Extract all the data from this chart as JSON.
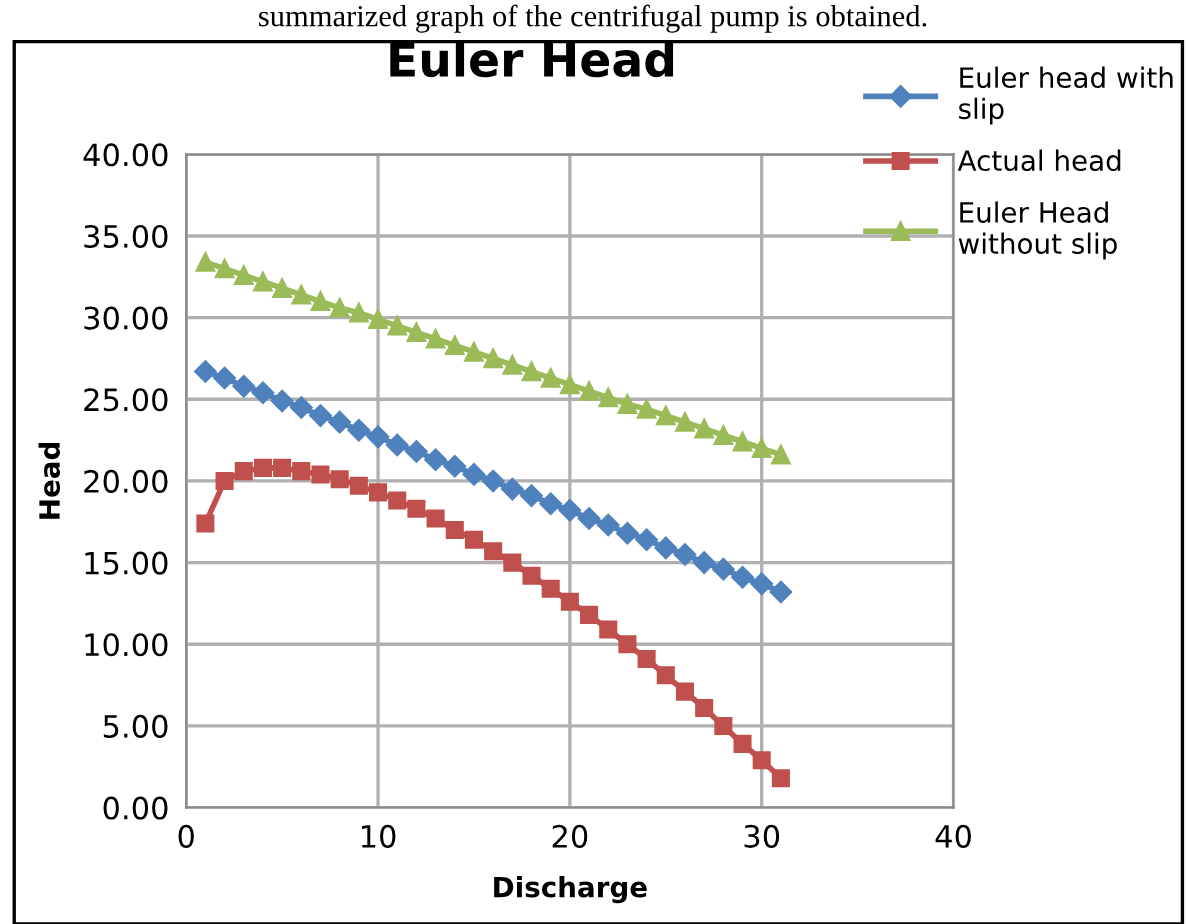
{
  "chart_data": {
    "type": "line",
    "title": "Euler Head",
    "xlabel": "Discharge",
    "ylabel": "Head",
    "annotations": [
      "summarized graph of the centrifugal pump is obtained."
    ],
    "x": [
      1,
      2,
      3,
      4,
      5,
      6,
      7,
      8,
      9,
      10,
      11,
      12,
      13,
      14,
      15,
      16,
      17,
      18,
      19,
      20,
      21,
      22,
      23,
      24,
      25,
      26,
      27,
      28,
      29,
      30,
      31
    ],
    "series": [
      {
        "name": "Euler head with\nslip",
        "color": "#4f81bd",
        "marker": "diamond",
        "values": [
          26.7,
          26.3,
          25.8,
          25.4,
          24.9,
          24.5,
          24.0,
          23.6,
          23.1,
          22.7,
          22.2,
          21.8,
          21.3,
          20.9,
          20.4,
          20.0,
          19.5,
          19.1,
          18.6,
          18.2,
          17.7,
          17.3,
          16.8,
          16.4,
          15.9,
          15.5,
          15.0,
          14.6,
          14.1,
          13.7,
          13.2
        ]
      },
      {
        "name": "Actual head",
        "color": "#c0504d",
        "marker": "square",
        "values": [
          17.4,
          20.0,
          20.6,
          20.8,
          20.8,
          20.6,
          20.4,
          20.1,
          19.7,
          19.3,
          18.8,
          18.3,
          17.7,
          17.0,
          16.4,
          15.7,
          15.0,
          14.2,
          13.4,
          12.6,
          11.8,
          10.9,
          10.0,
          9.1,
          8.1,
          7.1,
          6.1,
          5.0,
          3.9,
          2.9,
          1.8
        ]
      },
      {
        "name": "Euler Head\nwithout slip",
        "color": "#9bbb59",
        "marker": "triangle",
        "values": [
          33.4,
          33.0,
          32.6,
          32.2,
          31.8,
          31.4,
          31.0,
          30.6,
          30.3,
          29.9,
          29.5,
          29.1,
          28.7,
          28.3,
          27.9,
          27.5,
          27.1,
          26.7,
          26.3,
          25.9,
          25.5,
          25.1,
          24.7,
          24.4,
          24.0,
          23.6,
          23.2,
          22.8,
          22.4,
          22.0,
          21.6
        ]
      }
    ],
    "xlim": [
      0,
      40
    ],
    "xticks": [
      0,
      10,
      20,
      30,
      40
    ],
    "ylim": [
      0,
      40
    ],
    "yticks": [
      {
        "value": 0,
        "label": "0.00"
      },
      {
        "value": 5,
        "label": "5.00"
      },
      {
        "value": 10,
        "label": "10.00"
      },
      {
        "value": 15,
        "label": "15.00"
      },
      {
        "value": 20,
        "label": "20.00"
      },
      {
        "value": 25,
        "label": "25.00"
      },
      {
        "value": 30,
        "label": "30.00"
      },
      {
        "value": 35,
        "label": "35.00"
      },
      {
        "value": 40,
        "label": "40.00"
      }
    ],
    "grid": true,
    "legend": "top right",
    "line_style": "solid"
  }
}
